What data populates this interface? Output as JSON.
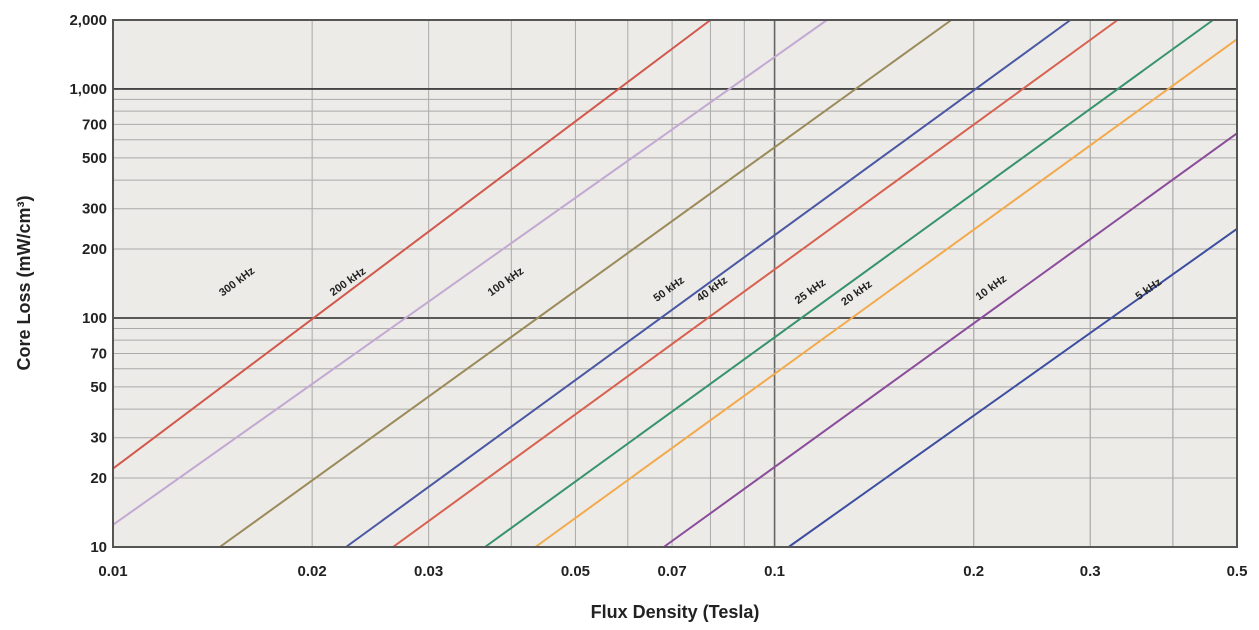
{
  "chart_data": {
    "type": "line",
    "title": "",
    "xlabel": "Flux Density (Tesla)",
    "ylabel": "Core Loss (mW/cm³)",
    "x_scale": "log",
    "y_scale": "log",
    "xlim": [
      0.01,
      0.5
    ],
    "ylim": [
      10,
      2000
    ],
    "grid": true,
    "plot_background": "#ecebe7",
    "x_ticks": [
      0.01,
      0.02,
      0.03,
      0.05,
      0.07,
      0.1,
      0.2,
      0.3,
      0.5
    ],
    "x_tick_labels": [
      "0.01",
      "0.02",
      "0.03",
      "0.05",
      "0.07",
      "0.1",
      "0.2",
      "0.3",
      "0.5"
    ],
    "y_ticks": [
      10,
      20,
      30,
      50,
      70,
      100,
      200,
      300,
      500,
      700,
      1000,
      2000
    ],
    "y_tick_labels": [
      "10",
      "20",
      "30",
      "50",
      "70",
      "100",
      "200",
      "300",
      "500",
      "700",
      "1,000",
      "2,000"
    ],
    "series": [
      {
        "name": "300 kHz",
        "color": "#d2584c",
        "x": [
          0.01,
          0.08
        ],
        "y": [
          22,
          2000
        ],
        "label_x": 0.0155,
        "label_y": 140
      },
      {
        "name": "200 kHz",
        "color": "#c3a9d2",
        "x": [
          0.01,
          0.12
        ],
        "y": [
          12.5,
          2000
        ],
        "label_x": 0.0228,
        "label_y": 140
      },
      {
        "name": "100 kHz",
        "color": "#9b8a5a",
        "x": [
          0.0145,
          0.185
        ],
        "y": [
          10,
          2000
        ],
        "label_x": 0.0395,
        "label_y": 140
      },
      {
        "name": "50 kHz",
        "color": "#4a57a3",
        "x": [
          0.0225,
          0.28
        ],
        "y": [
          10,
          2000
        ],
        "label_x": 0.0697,
        "label_y": 130
      },
      {
        "name": "40 kHz",
        "color": "#d8614f",
        "x": [
          0.0265,
          0.33
        ],
        "y": [
          10,
          2000
        ],
        "label_x": 0.081,
        "label_y": 130
      },
      {
        "name": "25 kHz",
        "color": "#36936c",
        "x": [
          0.0365,
          0.46
        ],
        "y": [
          10,
          2000
        ],
        "label_x": 0.114,
        "label_y": 127
      },
      {
        "name": "20 kHz",
        "color": "#f3aa4d",
        "x": [
          0.0435,
          0.5
        ],
        "y": [
          10,
          1650
        ],
        "label_x": 0.134,
        "label_y": 125
      },
      {
        "name": "10 kHz",
        "color": "#8a4c9b",
        "x": [
          0.068,
          0.5
        ],
        "y": [
          10,
          640
        ],
        "label_x": 0.214,
        "label_y": 132
      },
      {
        "name": "5 kHz",
        "color": "#3d4ea0",
        "x": [
          0.105,
          0.5
        ],
        "y": [
          10,
          245
        ],
        "label_x": 0.37,
        "label_y": 130
      }
    ]
  }
}
